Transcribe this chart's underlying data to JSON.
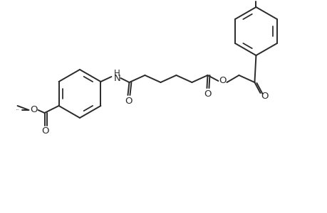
{
  "background_color": "#ffffff",
  "line_color": "#2a2a2a",
  "line_width": 1.4,
  "font_size": 9.5,
  "fig_width": 4.6,
  "fig_height": 3.0,
  "dpi": 100,
  "xlim": [
    0,
    460
  ],
  "ylim": [
    0,
    300
  ]
}
